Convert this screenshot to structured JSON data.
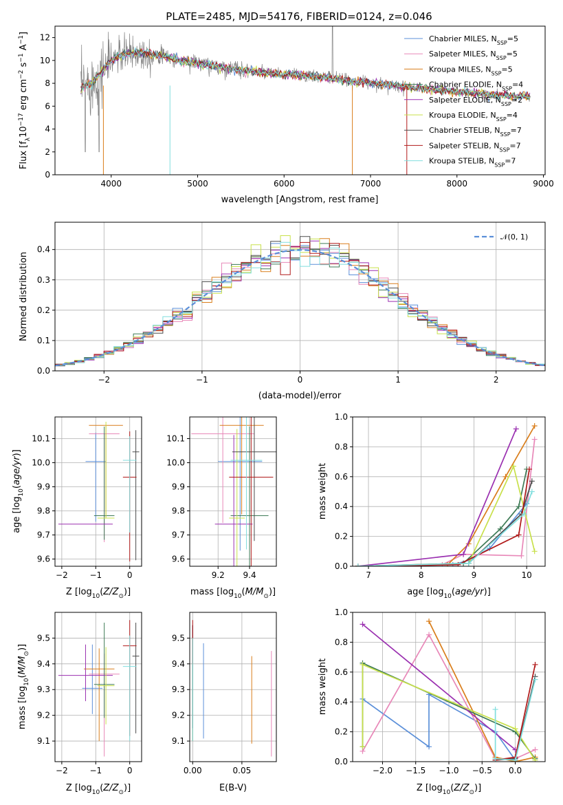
{
  "colors": {
    "chabrier_miles": "#5b8fd9",
    "salpeter_miles": "#e887b8",
    "kroupa_miles": "#d97d1a",
    "chabrier_elodie": "#3d7a55",
    "salpeter_elodie": "#9a2fb0",
    "kroupa_elodie": "#c8e04a",
    "chabrier_stelib": "#4a4a4a",
    "salpeter_stelib": "#b01818",
    "kroupa_stelib": "#80dede",
    "spectrum": "#808080",
    "normal_fit": "#5a8ed8"
  },
  "chart_data": [
    {
      "type": "line",
      "title": "PLATE=2485, MJD=54176, FIBERID=0124, z=0.046",
      "xlabel": "wavelength [Angstrom, rest frame]",
      "ylabel": "Flux [f_λ 10^-17 erg cm^-2 s^-1 A^-1]",
      "xlim": [
        3350,
        9020
      ],
      "ylim": [
        0,
        13
      ],
      "xticks": [
        4000,
        5000,
        6000,
        7000,
        8000,
        9000
      ],
      "yticks": [
        0,
        2,
        4,
        6,
        8,
        10,
        12
      ],
      "legend_position": "top-right",
      "legend": [
        {
          "label": "Chabrier MILES, N",
          "sub": "SSP",
          "val": "=5"
        },
        {
          "label": "Salpeter MILES, N",
          "sub": "SSP",
          "val": "=5"
        },
        {
          "label": "Kroupa MILES, N",
          "sub": "SSP",
          "val": "=5"
        },
        {
          "label": "Chabrier ELODIE, N",
          "sub": "SSP",
          "val": "=4"
        },
        {
          "label": "Salpeter ELODIE, N",
          "sub": "SSP",
          "val": "=2"
        },
        {
          "label": "Kroupa ELODIE, N",
          "sub": "SSP",
          "val": "=4"
        },
        {
          "label": "Chabrier STELIB, N",
          "sub": "SSP",
          "val": "=7"
        },
        {
          "label": "Salpeter STELIB, N",
          "sub": "SSP",
          "val": "=7"
        },
        {
          "label": "Kroupa STELIB, N",
          "sub": "SSP",
          "val": "=7"
        }
      ],
      "continuum": {
        "x": [
          3650,
          3800,
          3950,
          4050,
          4200,
          4400,
          4600,
          4800,
          5000,
          5200,
          5500,
          5800,
          6000,
          6300,
          6600,
          6900,
          7200,
          7500,
          7800,
          8100,
          8400,
          8700,
          8850
        ],
        "y": [
          7.6,
          8.2,
          9.6,
          10.3,
          10.6,
          10.7,
          10.4,
          10.0,
          9.8,
          9.5,
          9.2,
          8.9,
          8.8,
          8.6,
          8.4,
          8.1,
          7.9,
          7.6,
          7.4,
          7.2,
          7.0,
          6.9,
          6.8
        ]
      }
    },
    {
      "type": "line",
      "xlabel": "(data-model)/error",
      "ylabel": "Normed distribution",
      "xlim": [
        -2.5,
        2.5
      ],
      "ylim": [
        0,
        0.49
      ],
      "xticks": [
        -2,
        -1,
        0,
        1,
        2
      ],
      "yticks": [
        0.0,
        0.1,
        0.2,
        0.3,
        0.4
      ],
      "legend_position": "top-right",
      "legend_label": "𝒩(0, 1)",
      "bin_width": 0.1
    },
    {
      "type": "scatter",
      "xlabel": "Z [log10(Z/Z⊙)]",
      "ylabel": "age [log10(age/yr)]",
      "xlim": [
        -2.2,
        0.35
      ],
      "ylim": [
        9.57,
        10.19
      ],
      "xticks": [
        -2,
        -1,
        0
      ],
      "yticks": [
        9.6,
        9.7,
        9.8,
        9.9,
        10.0,
        10.1
      ],
      "points": [
        {
          "series": "chabrier_miles",
          "x": -1.0,
          "y": 10.005,
          "xerr": 0.3,
          "yerr": [
            0.25,
            0.12
          ]
        },
        {
          "series": "salpeter_miles",
          "x": -0.75,
          "y": 10.12,
          "xerr": 0.45,
          "yerr": [
            0.45,
            0.0
          ]
        },
        {
          "series": "kroupa_miles",
          "x": -0.7,
          "y": 10.155,
          "xerr": 0.5,
          "yerr": [
            0.38,
            0.0
          ]
        },
        {
          "series": "chabrier_elodie",
          "x": -0.75,
          "y": 9.78,
          "xerr": 0.3,
          "yerr": [
            0.1,
            0.37
          ]
        },
        {
          "series": "salpeter_elodie",
          "x": -1.3,
          "y": 9.745,
          "xerr": 0.8,
          "yerr": [
            0.0,
            0.0
          ]
        },
        {
          "series": "kroupa_elodie",
          "x": -0.7,
          "y": 9.77,
          "xerr": 0.25,
          "yerr": [
            0.0,
            0.4
          ]
        },
        {
          "series": "chabrier_stelib",
          "x": 0.18,
          "y": 10.045,
          "xerr": 0.1,
          "yerr": [
            0.45,
            0.09
          ]
        },
        {
          "series": "salpeter_stelib",
          "x": 0.0,
          "y": 9.94,
          "xerr": 0.2,
          "yerr": [
            0.35,
            0.19
          ]
        },
        {
          "series": "kroupa_stelib",
          "x": 0.0,
          "y": 10.01,
          "xerr": 0.2,
          "yerr": [
            0.3,
            0.1
          ]
        }
      ]
    },
    {
      "type": "scatter",
      "xlabel": "mass [log10(M/M⊙)]",
      "ylabel": "",
      "xlim": [
        9.02,
        9.57
      ],
      "ylim": [
        9.57,
        10.19
      ],
      "xticks": [
        9.2,
        9.4
      ],
      "yticks": [
        9.6,
        9.7,
        9.8,
        9.9,
        10.0,
        10.1
      ],
      "points": [
        {
          "series": "chabrier_miles",
          "x": 9.34,
          "y": 10.005,
          "xerr": 0.14
        },
        {
          "series": "salpeter_miles",
          "x": 9.23,
          "y": 10.12,
          "xerr": 0.2
        },
        {
          "series": "kroupa_miles",
          "x": 9.35,
          "y": 10.155,
          "xerr": 0.14
        },
        {
          "series": "chabrier_elodie",
          "x": 9.4,
          "y": 9.78,
          "xerr": 0.12
        },
        {
          "series": "salpeter_elodie",
          "x": 9.3,
          "y": 9.745,
          "xerr": 0.12
        },
        {
          "series": "kroupa_elodie",
          "x": 9.32,
          "y": 9.77,
          "xerr": 0.05
        },
        {
          "series": "chabrier_stelib",
          "x": 9.43,
          "y": 10.045,
          "xerr": 0.14
        },
        {
          "series": "salpeter_stelib",
          "x": 9.41,
          "y": 9.94,
          "xerr": 0.14
        },
        {
          "series": "kroupa_stelib",
          "x": 9.38,
          "y": 10.01,
          "xerr": 0.1
        }
      ]
    },
    {
      "type": "line",
      "xlabel": "age [log10(age/yr)]",
      "ylabel": "mass weight",
      "xlim": [
        6.7,
        10.35
      ],
      "ylim": [
        0,
        1.0
      ],
      "xticks": [
        7,
        8,
        9,
        10
      ],
      "yticks": [
        0.0,
        0.2,
        0.4,
        0.6,
        0.8,
        1.0
      ],
      "series": [
        {
          "name": "chabrier_miles",
          "x": [
            6.8,
            8.6,
            8.9,
            9.3,
            10.0
          ],
          "y": [
            0.0,
            0.01,
            0.04,
            0.12,
            0.42
          ]
        },
        {
          "name": "salpeter_miles",
          "x": [
            6.8,
            8.4,
            8.8,
            9.9,
            10.15
          ],
          "y": [
            0.0,
            0.01,
            0.08,
            0.07,
            0.85
          ]
        },
        {
          "name": "kroupa_miles",
          "x": [
            6.8,
            8.5,
            8.9,
            9.6,
            10.15
          ],
          "y": [
            0.0,
            0.01,
            0.15,
            0.6,
            0.94
          ]
        },
        {
          "name": "chabrier_elodie",
          "x": [
            6.8,
            8.8,
            9.5,
            9.85,
            10.0
          ],
          "y": [
            0.0,
            0.02,
            0.25,
            0.4,
            0.65
          ]
        },
        {
          "name": "salpeter_elodie",
          "x": [
            6.8,
            8.8,
            9.8
          ],
          "y": [
            0.0,
            0.08,
            0.92
          ]
        },
        {
          "name": "kroupa_elodie",
          "x": [
            6.8,
            8.9,
            9.75,
            10.15
          ],
          "y": [
            0.0,
            0.02,
            0.67,
            0.1
          ]
        },
        {
          "name": "chabrier_stelib",
          "x": [
            6.8,
            8.9,
            9.9,
            10.1
          ],
          "y": [
            0.0,
            0.02,
            0.35,
            0.57
          ]
        },
        {
          "name": "salpeter_stelib",
          "x": [
            6.8,
            8.7,
            9.85,
            10.05
          ],
          "y": [
            0.0,
            0.01,
            0.21,
            0.65
          ]
        },
        {
          "name": "kroupa_stelib",
          "x": [
            6.8,
            8.9,
            9.95,
            10.1
          ],
          "y": [
            0.0,
            0.02,
            0.35,
            0.5
          ]
        }
      ]
    },
    {
      "type": "scatter",
      "xlabel": "Z [log10(Z/Z⊙)]",
      "ylabel": "mass [log10(M/M⊙)]",
      "xlim": [
        -2.2,
        0.35
      ],
      "ylim": [
        9.02,
        9.6
      ],
      "xticks": [
        -2,
        -1,
        0
      ],
      "yticks": [
        9.1,
        9.2,
        9.3,
        9.4,
        9.5
      ],
      "points": [
        {
          "series": "chabrier_miles",
          "x": -1.1,
          "y": 9.305,
          "xerr": 0.3,
          "yerr": [
            0.1,
            0.17
          ]
        },
        {
          "series": "salpeter_miles",
          "x": -0.75,
          "y": 9.36,
          "xerr": 0.45,
          "yerr": [
            0.32,
            0.08
          ]
        },
        {
          "series": "kroupa_miles",
          "x": -0.9,
          "y": 9.38,
          "xerr": 0.45,
          "yerr": [
            0.28,
            0.08
          ]
        },
        {
          "series": "chabrier_elodie",
          "x": -0.75,
          "y": 9.32,
          "xerr": 0.3,
          "yerr": [
            0.13,
            0.24
          ]
        },
        {
          "series": "salpeter_elodie",
          "x": -1.3,
          "y": 9.355,
          "xerr": 0.8,
          "yerr": [
            0.1,
            0.12
          ]
        },
        {
          "series": "kroupa_elodie",
          "x": -0.7,
          "y": 9.315,
          "xerr": 0.25,
          "yerr": [
            0.15,
            0.15
          ]
        },
        {
          "series": "chabrier_stelib",
          "x": 0.18,
          "y": 9.43,
          "xerr": 0.1,
          "yerr": [
            0.3,
            0.13
          ]
        },
        {
          "series": "salpeter_stelib",
          "x": 0.0,
          "y": 9.47,
          "xerr": 0.2,
          "yerr": [
            0.35,
            0.1
          ]
        },
        {
          "series": "kroupa_stelib",
          "x": 0.0,
          "y": 9.39,
          "xerr": 0.2,
          "yerr": [
            0.29,
            0.12
          ]
        }
      ]
    },
    {
      "type": "scatter",
      "xlabel": "E(B-V)",
      "ylabel": "",
      "xlim": [
        -0.003,
        0.085
      ],
      "ylim": [
        9.02,
        9.6
      ],
      "xticks": [
        0.0,
        0.05
      ],
      "xticklabels": [
        "0.00",
        "0.05"
      ],
      "yticks": [
        9.1,
        9.2,
        9.3,
        9.4,
        9.5
      ],
      "points": [
        {
          "series": "chabrier_miles",
          "x": 0.011,
          "y": 9.33,
          "yerr": [
            0.22,
            0.15
          ]
        },
        {
          "series": "salpeter_miles",
          "x": 0.08,
          "y": 9.24,
          "yerr": [
            0.2,
            0.21
          ]
        },
        {
          "series": "kroupa_miles",
          "x": 0.06,
          "y": 9.26,
          "yerr": [
            0.17,
            0.17
          ]
        },
        {
          "series": "chabrier_elodie",
          "x": 0.0,
          "y": 9.4,
          "yerr": [
            0.3,
            0.15
          ]
        },
        {
          "series": "salpeter_elodie",
          "x": 0.0,
          "y": 9.4,
          "yerr": [
            0.3,
            0.15
          ]
        },
        {
          "series": "kroupa_elodie",
          "x": 0.0,
          "y": 9.35,
          "yerr": [
            0.25,
            0.15
          ]
        },
        {
          "series": "chabrier_stelib",
          "x": 0.0,
          "y": 9.45,
          "yerr": [
            0.3,
            0.1
          ]
        },
        {
          "series": "salpeter_stelib",
          "x": 0.0,
          "y": 9.5,
          "yerr": [
            0.1,
            0.07
          ]
        },
        {
          "series": "kroupa_stelib",
          "x": 0.0,
          "y": 9.35,
          "yerr": [
            0.25,
            0.15
          ]
        }
      ]
    },
    {
      "type": "line",
      "xlabel": "Z [log10(Z/Z⊙)]",
      "ylabel": "mass weight",
      "xlim": [
        -2.45,
        0.45
      ],
      "ylim": [
        0,
        1.0
      ],
      "xticks": [
        -2.0,
        -1.5,
        -1.0,
        -0.5,
        0.0
      ],
      "xticklabels": [
        "−2.0",
        "−1.5",
        "−1.0",
        "−0.5",
        "0.0"
      ],
      "yticks": [
        0.0,
        0.2,
        0.4,
        0.6,
        0.8,
        1.0
      ],
      "series": [
        {
          "name": "chabrier_miles",
          "x": [
            -2.3,
            -1.3,
            -1.3,
            -0.3,
            0.0
          ],
          "y": [
            0.42,
            0.1,
            0.45,
            0.2,
            0.01
          ]
        },
        {
          "name": "salpeter_miles",
          "x": [
            -2.3,
            -1.3,
            -0.3,
            0.0,
            0.3
          ],
          "y": [
            0.07,
            0.85,
            0.02,
            0.02,
            0.08
          ]
        },
        {
          "name": "kroupa_miles",
          "x": [
            -1.3,
            -0.3,
            0.0,
            0.3
          ],
          "y": [
            0.94,
            0.03,
            0.0,
            0.03
          ]
        },
        {
          "name": "chabrier_elodie",
          "x": [
            -2.3,
            -2.3,
            0.0,
            0.3
          ],
          "y": [
            0.1,
            0.66,
            0.2,
            0.02
          ]
        },
        {
          "name": "salpeter_elodie",
          "x": [
            -2.3,
            0.0
          ],
          "y": [
            0.92,
            0.08
          ]
        },
        {
          "name": "kroupa_elodie",
          "x": [
            -2.3,
            -2.3,
            0.0,
            0.3
          ],
          "y": [
            0.1,
            0.65,
            0.22,
            0.01
          ]
        },
        {
          "name": "chabrier_stelib",
          "x": [
            -0.3,
            0.0,
            0.3
          ],
          "y": [
            0.01,
            0.02,
            0.57
          ]
        },
        {
          "name": "salpeter_stelib",
          "x": [
            -0.3,
            0.0,
            0.3
          ],
          "y": [
            0.01,
            0.03,
            0.65
          ]
        },
        {
          "name": "kroupa_stelib",
          "x": [
            -0.3,
            -0.3,
            0.0,
            0.3
          ],
          "y": [
            0.35,
            0.02,
            0.01,
            0.55
          ]
        }
      ]
    }
  ]
}
